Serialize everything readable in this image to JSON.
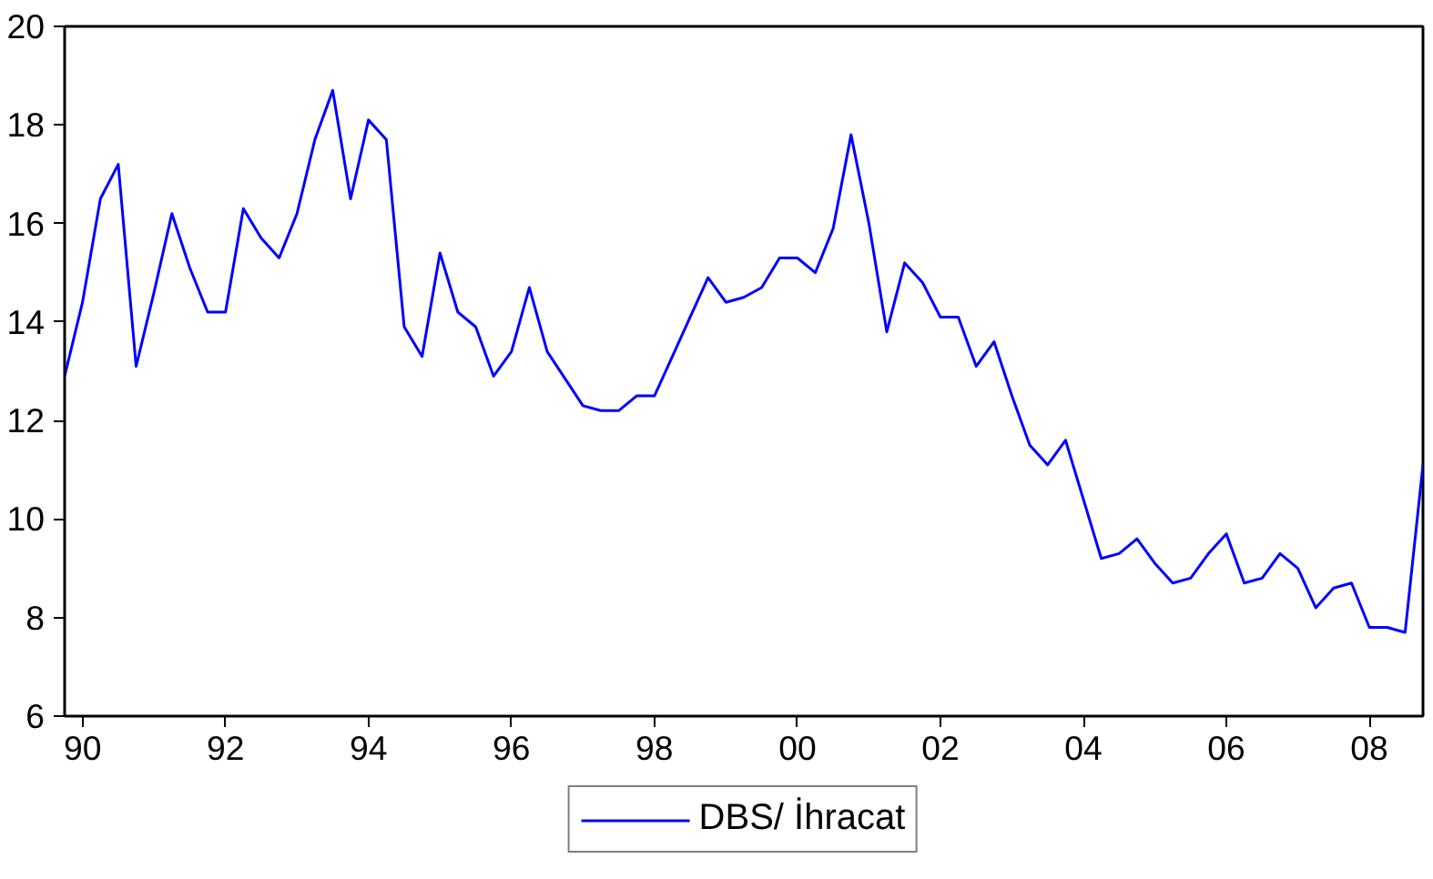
{
  "chart_data": {
    "type": "line",
    "x": [
      1989.75,
      1990,
      1990.25,
      1990.5,
      1990.75,
      1991,
      1991.25,
      1991.5,
      1991.75,
      1992,
      1992.25,
      1992.5,
      1992.75,
      1993,
      1993.25,
      1993.5,
      1993.75,
      1994,
      1994.25,
      1994.5,
      1994.75,
      1995,
      1995.25,
      1995.5,
      1995.75,
      1996,
      1996.25,
      1996.5,
      1996.75,
      1997,
      1997.25,
      1997.5,
      1997.75,
      1998,
      1998.25,
      1998.5,
      1998.75,
      1999,
      1999.25,
      1999.5,
      1999.75,
      2000,
      2000.25,
      2000.5,
      2000.75,
      2001,
      2001.25,
      2001.5,
      2001.75,
      2002,
      2002.25,
      2002.5,
      2002.75,
      2003,
      2003.25,
      2003.5,
      2003.75,
      2004,
      2004.25,
      2004.5,
      2004.75,
      2005,
      2005.25,
      2005.5,
      2005.75,
      2006,
      2006.25,
      2006.5,
      2006.75,
      2007,
      2007.25,
      2007.5,
      2007.75,
      2008,
      2008.25,
      2008.5,
      2008.75
    ],
    "series": [
      {
        "name": "DBS/ İhracat",
        "color": "#0000ff",
        "values": [
          12.9,
          14.4,
          16.5,
          17.2,
          13.1,
          14.6,
          16.2,
          15.1,
          14.2,
          14.2,
          16.3,
          15.7,
          15.3,
          16.2,
          17.7,
          18.7,
          16.5,
          18.1,
          17.7,
          13.9,
          13.3,
          15.4,
          14.2,
          13.9,
          12.9,
          13.4,
          14.7,
          13.4,
          12.85,
          12.3,
          12.2,
          12.2,
          12.5,
          12.5,
          13.3,
          14.1,
          14.9,
          14.4,
          14.5,
          14.7,
          15.3,
          15.3,
          15.0,
          15.9,
          17.8,
          16.0,
          13.8,
          15.2,
          14.8,
          14.1,
          14.1,
          13.1,
          13.6,
          12.5,
          11.5,
          11.1,
          11.6,
          10.4,
          9.2,
          9.3,
          9.6,
          9.1,
          8.7,
          8.8,
          9.3,
          9.7,
          8.7,
          8.8,
          9.3,
          9.0,
          8.2,
          8.6,
          8.7,
          7.8,
          7.8,
          7.7,
          11.1
        ]
      }
    ],
    "xlim": [
      1989.75,
      2008.75
    ],
    "xticks": [
      {
        "value": 1990,
        "label": "90"
      },
      {
        "value": 1992,
        "label": "92"
      },
      {
        "value": 1994,
        "label": "94"
      },
      {
        "value": 1996,
        "label": "96"
      },
      {
        "value": 1998,
        "label": "98"
      },
      {
        "value": 2000,
        "label": "00"
      },
      {
        "value": 2002,
        "label": "02"
      },
      {
        "value": 2004,
        "label": "04"
      },
      {
        "value": 2006,
        "label": "06"
      },
      {
        "value": 2008,
        "label": "08"
      }
    ],
    "ylim": [
      6,
      20
    ],
    "yticks": [
      6,
      8,
      10,
      12,
      14,
      16,
      18,
      20
    ],
    "grid": false,
    "legend": "bottom",
    "marker": "none",
    "line_style": "solid"
  }
}
